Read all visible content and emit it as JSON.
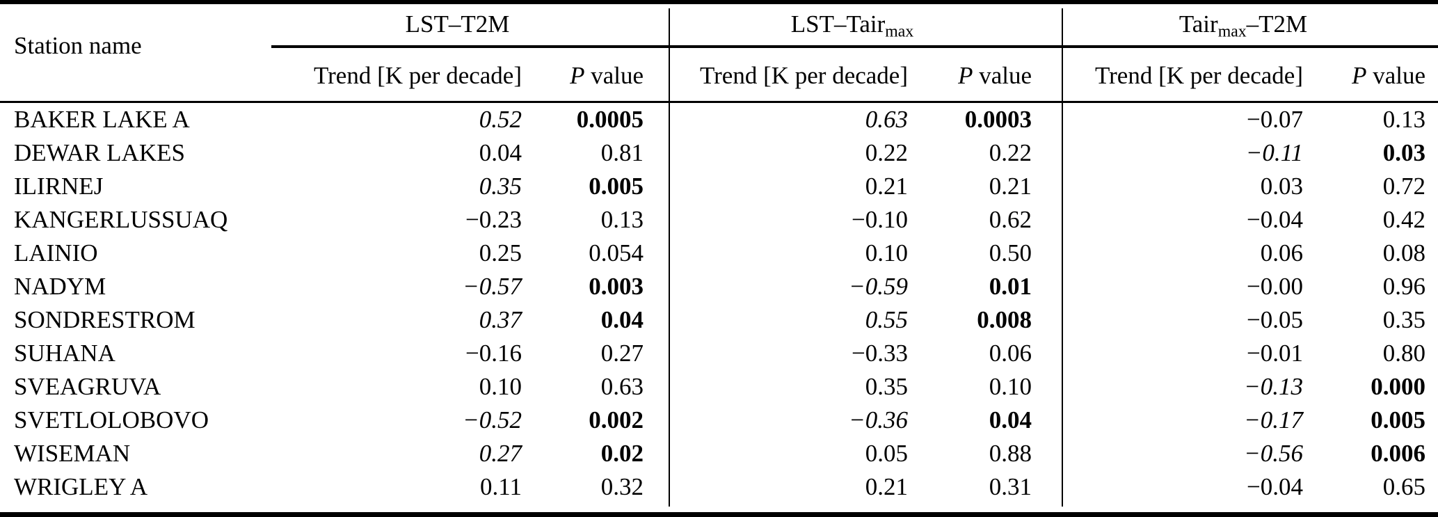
{
  "table": {
    "station_header": "Station name",
    "groups": [
      {
        "pre": "LST–T2M",
        "sub": "",
        "post": ""
      },
      {
        "pre": "LST–Tair",
        "sub": "max",
        "post": ""
      },
      {
        "pre": "Tair",
        "sub": "max",
        "post": "–T2M"
      }
    ],
    "subheader": {
      "trend": "Trend [K per decade]",
      "p_italic": "P",
      "p_rest": " value"
    },
    "rows": [
      {
        "station": "BAKER LAKE A",
        "cells": [
          {
            "v": "0.52",
            "s": "it"
          },
          {
            "v": "0.0005",
            "s": "b"
          },
          {
            "v": "0.63",
            "s": "it"
          },
          {
            "v": "0.0003",
            "s": "b"
          },
          {
            "v": "−0.07",
            "s": ""
          },
          {
            "v": "0.13",
            "s": ""
          }
        ]
      },
      {
        "station": "DEWAR LAKES",
        "cells": [
          {
            "v": "0.04",
            "s": ""
          },
          {
            "v": "0.81",
            "s": ""
          },
          {
            "v": "0.22",
            "s": ""
          },
          {
            "v": "0.22",
            "s": ""
          },
          {
            "v": "−0.11",
            "s": "it"
          },
          {
            "v": "0.03",
            "s": "b"
          }
        ]
      },
      {
        "station": "ILIRNEJ",
        "cells": [
          {
            "v": "0.35",
            "s": "it"
          },
          {
            "v": "0.005",
            "s": "b"
          },
          {
            "v": "0.21",
            "s": ""
          },
          {
            "v": "0.21",
            "s": ""
          },
          {
            "v": "0.03",
            "s": ""
          },
          {
            "v": "0.72",
            "s": ""
          }
        ]
      },
      {
        "station": "KANGERLUSSUAQ",
        "cells": [
          {
            "v": "−0.23",
            "s": ""
          },
          {
            "v": "0.13",
            "s": ""
          },
          {
            "v": "−0.10",
            "s": ""
          },
          {
            "v": "0.62",
            "s": ""
          },
          {
            "v": "−0.04",
            "s": ""
          },
          {
            "v": "0.42",
            "s": ""
          }
        ]
      },
      {
        "station": "LAINIO",
        "cells": [
          {
            "v": "0.25",
            "s": ""
          },
          {
            "v": "0.054",
            "s": ""
          },
          {
            "v": "0.10",
            "s": ""
          },
          {
            "v": "0.50",
            "s": ""
          },
          {
            "v": "0.06",
            "s": ""
          },
          {
            "v": "0.08",
            "s": ""
          }
        ]
      },
      {
        "station": "NADYM",
        "cells": [
          {
            "v": "−0.57",
            "s": "it"
          },
          {
            "v": "0.003",
            "s": "b"
          },
          {
            "v": "−0.59",
            "s": "it"
          },
          {
            "v": "0.01",
            "s": "b"
          },
          {
            "v": "−0.00",
            "s": ""
          },
          {
            "v": "0.96",
            "s": ""
          }
        ]
      },
      {
        "station": "SONDRESTROM",
        "cells": [
          {
            "v": "0.37",
            "s": "it"
          },
          {
            "v": "0.04",
            "s": "b"
          },
          {
            "v": "0.55",
            "s": "it"
          },
          {
            "v": "0.008",
            "s": "b"
          },
          {
            "v": "−0.05",
            "s": ""
          },
          {
            "v": "0.35",
            "s": ""
          }
        ]
      },
      {
        "station": "SUHANA",
        "cells": [
          {
            "v": "−0.16",
            "s": ""
          },
          {
            "v": "0.27",
            "s": ""
          },
          {
            "v": "−0.33",
            "s": ""
          },
          {
            "v": "0.06",
            "s": ""
          },
          {
            "v": "−0.01",
            "s": ""
          },
          {
            "v": "0.80",
            "s": ""
          }
        ]
      },
      {
        "station": "SVEAGRUVA",
        "cells": [
          {
            "v": "0.10",
            "s": ""
          },
          {
            "v": "0.63",
            "s": ""
          },
          {
            "v": "0.35",
            "s": ""
          },
          {
            "v": "0.10",
            "s": ""
          },
          {
            "v": "−0.13",
            "s": "it"
          },
          {
            "v": "0.000",
            "s": "b"
          }
        ]
      },
      {
        "station": "SVETLOLOBOVO",
        "cells": [
          {
            "v": "−0.52",
            "s": "it"
          },
          {
            "v": "0.002",
            "s": "b"
          },
          {
            "v": "−0.36",
            "s": "it"
          },
          {
            "v": "0.04",
            "s": "b"
          },
          {
            "v": "−0.17",
            "s": "it"
          },
          {
            "v": "0.005",
            "s": "b"
          }
        ]
      },
      {
        "station": "WISEMAN",
        "cells": [
          {
            "v": "0.27",
            "s": "it"
          },
          {
            "v": "0.02",
            "s": "b"
          },
          {
            "v": "0.05",
            "s": ""
          },
          {
            "v": "0.88",
            "s": ""
          },
          {
            "v": "−0.56",
            "s": "it"
          },
          {
            "v": "0.006",
            "s": "b"
          }
        ]
      },
      {
        "station": "WRIGLEY A",
        "cells": [
          {
            "v": "0.11",
            "s": ""
          },
          {
            "v": "0.32",
            "s": ""
          },
          {
            "v": "0.21",
            "s": ""
          },
          {
            "v": "0.31",
            "s": ""
          },
          {
            "v": "−0.04",
            "s": ""
          },
          {
            "v": "0.65",
            "s": ""
          }
        ]
      }
    ]
  }
}
